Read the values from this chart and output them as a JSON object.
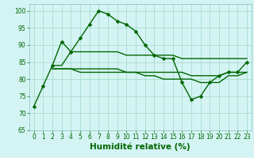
{
  "line1_x": [
    0,
    1,
    2,
    3,
    4,
    5,
    6,
    7,
    8,
    9,
    10,
    11,
    12,
    13,
    14,
    15,
    16,
    17,
    18,
    19,
    20,
    21,
    22,
    23
  ],
  "line1_y": [
    72,
    78,
    84,
    91,
    88,
    92,
    96,
    100,
    99,
    97,
    96,
    94,
    90,
    87,
    86,
    86,
    79,
    74,
    75,
    79,
    81,
    82,
    82,
    85
  ],
  "line2_x": [
    2,
    3,
    4,
    5,
    6,
    7,
    8,
    9,
    10,
    11,
    12,
    13,
    14,
    15,
    16,
    17,
    18,
    19,
    20,
    21,
    22,
    23
  ],
  "line2_y": [
    84,
    84,
    88,
    88,
    88,
    88,
    88,
    88,
    87,
    87,
    87,
    87,
    87,
    87,
    86,
    86,
    86,
    86,
    86,
    86,
    86,
    86
  ],
  "line3_x": [
    2,
    3,
    4,
    5,
    6,
    7,
    8,
    9,
    10,
    11,
    12,
    13,
    14,
    15,
    16,
    17,
    18,
    19,
    20,
    21,
    22,
    23
  ],
  "line3_y": [
    83,
    83,
    83,
    83,
    83,
    83,
    83,
    83,
    82,
    82,
    82,
    82,
    82,
    82,
    82,
    81,
    81,
    81,
    81,
    82,
    82,
    82
  ],
  "line4_x": [
    2,
    3,
    4,
    5,
    6,
    7,
    8,
    9,
    10,
    11,
    12,
    13,
    14,
    15,
    16,
    17,
    18,
    19,
    20,
    21,
    22,
    23
  ],
  "line4_y": [
    83,
    83,
    83,
    82,
    82,
    82,
    82,
    82,
    82,
    82,
    81,
    81,
    80,
    80,
    80,
    80,
    79,
    79,
    79,
    81,
    81,
    82
  ],
  "background_color": "#d4f4f4",
  "grid_color": "#aaddcc",
  "line_color": "#006600",
  "xlabel": "Humidité relative (%)",
  "ylim": [
    65,
    102
  ],
  "xlim": [
    -0.5,
    23.5
  ],
  "yticks": [
    65,
    70,
    75,
    80,
    85,
    90,
    95,
    100
  ],
  "xticks": [
    0,
    1,
    2,
    3,
    4,
    5,
    6,
    7,
    8,
    9,
    10,
    11,
    12,
    13,
    14,
    15,
    16,
    17,
    18,
    19,
    20,
    21,
    22,
    23
  ],
  "tick_fontsize": 5.5,
  "xlabel_fontsize": 7.5,
  "marker_size": 2.5,
  "line_width": 1.0
}
